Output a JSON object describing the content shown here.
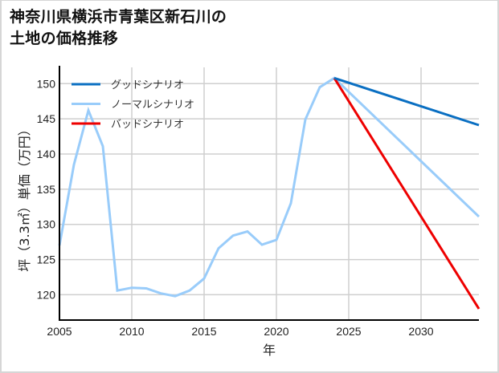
{
  "title_lines": [
    "神奈川県横浜市青葉区新石川の",
    "土地の価格推移"
  ],
  "colors": {
    "good": "#0a6fc2",
    "normal": "#99ccfa",
    "bad": "#ee0000",
    "grid": "#cfcfcf",
    "axis": "#000000"
  },
  "chart_data": {
    "type": "line",
    "title": "神奈川県横浜市青葉区新石川の土地の価格推移",
    "xlabel": "年",
    "ylabel": "坪（3.3㎡）単価（万円）",
    "xlim": [
      2005,
      2034
    ],
    "ylim": [
      116.4,
      151.4
    ],
    "x_ticks": [
      2005,
      2010,
      2015,
      2020,
      2025,
      2030
    ],
    "y_ticks": [
      120,
      125,
      130,
      135,
      140,
      145,
      150
    ],
    "grid": true,
    "legend_position": "upper left",
    "series": [
      {
        "name": "グッドシナリオ",
        "color": "#0a6fc2",
        "x": [
          2024,
          2034
        ],
        "values": [
          150.8,
          144.1
        ]
      },
      {
        "name": "ノーマルシナリオ",
        "color": "#99ccfa",
        "x": [
          2005,
          2006,
          2007,
          2008,
          2009,
          2010,
          2011,
          2012,
          2013,
          2014,
          2015,
          2016,
          2017,
          2018,
          2019,
          2020,
          2021,
          2022,
          2023,
          2024,
          2034
        ],
        "values": [
          127.0,
          138.5,
          146.2,
          141.1,
          120.6,
          121.0,
          120.9,
          120.2,
          119.8,
          120.6,
          122.3,
          126.6,
          128.4,
          129.0,
          127.1,
          127.8,
          133.0,
          144.9,
          149.5,
          150.8,
          131.1
        ]
      },
      {
        "name": "バッドシナリオ",
        "color": "#ee0000",
        "x": [
          2024,
          2034
        ],
        "values": [
          150.8,
          118.0
        ]
      }
    ]
  }
}
